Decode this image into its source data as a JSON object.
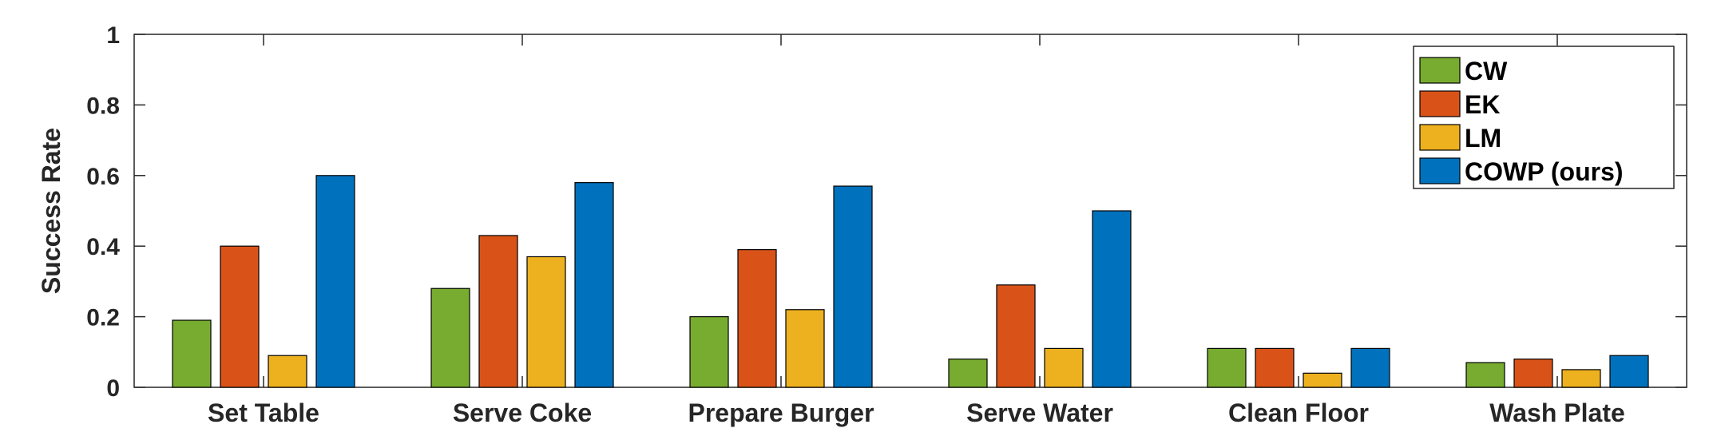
{
  "chart_data": {
    "type": "bar",
    "title": "",
    "xlabel": "",
    "ylabel": "Success Rate",
    "ylim": [
      0,
      1
    ],
    "yticks": [
      0,
      0.2,
      0.4,
      0.6,
      0.8,
      1
    ],
    "ytick_labels": [
      "0",
      "0.2",
      "0.4",
      "0.6",
      "0.8",
      "1"
    ],
    "grid": false,
    "legend_position": "top-right",
    "categories": [
      "Set Table",
      "Serve Coke",
      "Prepare Burger",
      "Serve Water",
      "Clean Floor",
      "Wash Plate"
    ],
    "series": [
      {
        "name": "CW",
        "color": "#77AC30",
        "values": [
          0.19,
          0.28,
          0.2,
          0.08,
          0.11,
          0.07
        ]
      },
      {
        "name": "EK",
        "color": "#D95319",
        "values": [
          0.4,
          0.43,
          0.39,
          0.29,
          0.11,
          0.08
        ]
      },
      {
        "name": "LM",
        "color": "#EDB120",
        "values": [
          0.09,
          0.37,
          0.22,
          0.11,
          0.04,
          0.05
        ]
      },
      {
        "name": "COWP (ours)",
        "color": "#0072BD",
        "values": [
          0.6,
          0.58,
          0.57,
          0.5,
          0.11,
          0.09
        ]
      }
    ]
  }
}
